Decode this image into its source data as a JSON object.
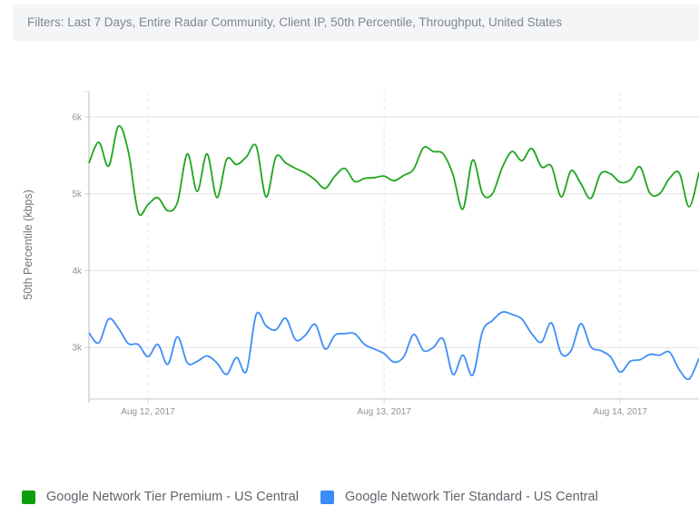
{
  "filters": {
    "text": "Filters:  Last 7 Days,  Entire Radar Community,  Client IP,  50th Percentile,  Throughput,  United States"
  },
  "chart_data": {
    "type": "line",
    "ylabel": "50th Percentile (kbps)",
    "ylim": [
      2330,
      6330
    ],
    "yticks": [
      {
        "value": 3000,
        "label": "3k"
      },
      {
        "value": 4000,
        "label": "4k"
      },
      {
        "value": 5000,
        "label": "5k"
      },
      {
        "value": 6000,
        "label": "6k"
      }
    ],
    "xticks": [
      {
        "value": "2017-08-12T00:00",
        "label": "Aug 12, 2017"
      },
      {
        "value": "2017-08-13T00:00",
        "label": "Aug 13, 2017"
      },
      {
        "value": "2017-08-14T00:00",
        "label": "Aug 14, 2017"
      }
    ],
    "xlim": [
      "2017-08-11T18:00",
      "2017-08-14T08:00"
    ],
    "grid": true,
    "legend_placement": "bottom-left",
    "x": [
      "2017-08-11T18:00",
      "2017-08-11T19:00",
      "2017-08-11T20:00",
      "2017-08-11T21:00",
      "2017-08-11T22:00",
      "2017-08-11T23:00",
      "2017-08-12T00:00",
      "2017-08-12T01:00",
      "2017-08-12T02:00",
      "2017-08-12T03:00",
      "2017-08-12T04:00",
      "2017-08-12T05:00",
      "2017-08-12T06:00",
      "2017-08-12T07:00",
      "2017-08-12T08:00",
      "2017-08-12T09:00",
      "2017-08-12T10:00",
      "2017-08-12T11:00",
      "2017-08-12T12:00",
      "2017-08-12T13:00",
      "2017-08-12T14:00",
      "2017-08-12T15:00",
      "2017-08-12T16:00",
      "2017-08-12T17:00",
      "2017-08-12T18:00",
      "2017-08-12T19:00",
      "2017-08-12T20:00",
      "2017-08-12T21:00",
      "2017-08-12T22:00",
      "2017-08-12T23:00",
      "2017-08-13T00:00",
      "2017-08-13T01:00",
      "2017-08-13T02:00",
      "2017-08-13T03:00",
      "2017-08-13T04:00",
      "2017-08-13T05:00",
      "2017-08-13T06:00",
      "2017-08-13T07:00",
      "2017-08-13T08:00",
      "2017-08-13T09:00",
      "2017-08-13T10:00",
      "2017-08-13T11:00",
      "2017-08-13T12:00",
      "2017-08-13T13:00",
      "2017-08-13T14:00",
      "2017-08-13T15:00",
      "2017-08-13T16:00",
      "2017-08-13T17:00",
      "2017-08-13T18:00",
      "2017-08-13T19:00",
      "2017-08-13T20:00",
      "2017-08-13T21:00",
      "2017-08-13T22:00",
      "2017-08-13T23:00",
      "2017-08-14T00:00",
      "2017-08-14T01:00",
      "2017-08-14T02:00",
      "2017-08-14T03:00",
      "2017-08-14T04:00",
      "2017-08-14T05:00",
      "2017-08-14T06:00",
      "2017-08-14T07:00",
      "2017-08-14T08:00"
    ],
    "series": [
      {
        "name": "Google Network Tier Premium - US Central",
        "color": "#1fa51f",
        "values": [
          5400,
          5670,
          5360,
          5880,
          5550,
          4760,
          4860,
          4950,
          4780,
          4890,
          5520,
          5030,
          5520,
          4950,
          5450,
          5380,
          5480,
          5620,
          4960,
          5480,
          5400,
          5330,
          5270,
          5180,
          5070,
          5230,
          5330,
          5160,
          5200,
          5210,
          5230,
          5170,
          5240,
          5320,
          5600,
          5550,
          5520,
          5250,
          4800,
          5440,
          5000,
          5000,
          5340,
          5550,
          5430,
          5590,
          5350,
          5360,
          4960,
          5300,
          5130,
          4940,
          5260,
          5260,
          5150,
          5180,
          5350,
          5010,
          5000,
          5200,
          5270,
          4830,
          5280
        ]
      },
      {
        "name": "Google Network Tier Standard - US Central",
        "color": "#3f8ef7",
        "values": [
          3190,
          3060,
          3370,
          3250,
          3050,
          3040,
          2880,
          3040,
          2780,
          3140,
          2800,
          2820,
          2890,
          2800,
          2650,
          2870,
          2690,
          3430,
          3280,
          3230,
          3380,
          3100,
          3160,
          3300,
          2980,
          3160,
          3180,
          3180,
          3040,
          2980,
          2920,
          2810,
          2880,
          3170,
          2960,
          3000,
          3110,
          2650,
          2900,
          2640,
          3210,
          3350,
          3460,
          3430,
          3370,
          3180,
          3070,
          3320,
          2920,
          2960,
          3310,
          3010,
          2960,
          2880,
          2680,
          2820,
          2840,
          2910,
          2900,
          2940,
          2710,
          2590,
          2860
        ]
      }
    ]
  },
  "legend": {
    "items": [
      {
        "label": "Google Network Tier Premium - US Central",
        "color": "#0ba00b"
      },
      {
        "label": "Google Network Tier Standard - US Central",
        "color": "#3a8cf7"
      }
    ]
  }
}
